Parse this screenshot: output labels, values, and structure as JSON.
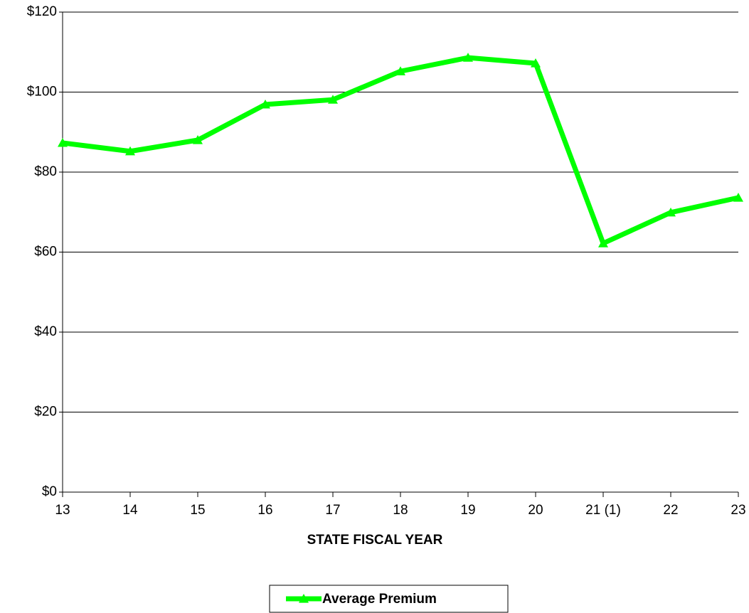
{
  "chart_data": {
    "type": "line",
    "x_label": "STATE FISCAL YEAR",
    "categories": [
      "13",
      "14",
      "15",
      "16",
      "17",
      "18",
      "19",
      "20",
      "21 (1)",
      "22",
      "23"
    ],
    "series": [
      {
        "name": "Average Premium",
        "color": "#00ff00",
        "values": [
          87.3,
          85.2,
          88.0,
          96.9,
          98.1,
          105.2,
          108.6,
          107.2,
          62.2,
          69.9,
          73.6
        ]
      }
    ],
    "ylim": [
      0,
      120
    ],
    "yticks": [
      {
        "value": 0,
        "label": "$0"
      },
      {
        "value": 20,
        "label": "$20"
      },
      {
        "value": 40,
        "label": "$40"
      },
      {
        "value": 60,
        "label": "$60"
      },
      {
        "value": 80,
        "label": "$80"
      },
      {
        "value": 100,
        "label": "$100"
      },
      {
        "value": 120,
        "label": "$120"
      }
    ],
    "grid": true,
    "legend": "bottom"
  }
}
